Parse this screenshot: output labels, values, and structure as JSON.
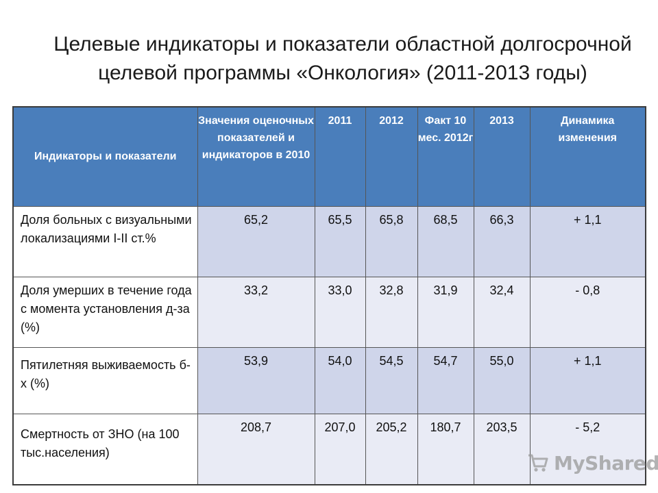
{
  "title": {
    "line1": "Целевые индикаторы и показатели областной долгосрочной",
    "line2": "целевой программы  «Онкология» (2011-2013 годы)"
  },
  "table": {
    "headers": [
      "Индикаторы и показатели",
      "Значения оценочных показателей и индикаторов в 2010",
      "2011",
      "2012",
      "Факт 10 мес. 2012г",
      "2013",
      "Динамика изменения"
    ],
    "rows": [
      {
        "label": "Доля больных с визуальными локализациями I-II ст.%",
        "values": [
          "65,2",
          "65,5",
          "65,8",
          "68,5",
          "66,3",
          "+ 1,1"
        ]
      },
      {
        "label": "Доля умерших в течение года с момента установления д-за (%)",
        "values": [
          "33,2",
          "33,0",
          "32,8",
          "31,9",
          "32,4",
          "- 0,8"
        ]
      },
      {
        "label": "Пятилетняя выживаемость б-х (%)",
        "values": [
          "53,9",
          "54,0",
          "54,5",
          "54,7",
          "55,0",
          "+ 1,1"
        ]
      },
      {
        "label": "Смертность от ЗНО (на 100 тыс.населения)",
        "values": [
          "208,7",
          "207,0",
          "205,2",
          "180,7",
          "203,5",
          "- 5,2"
        ]
      }
    ]
  },
  "watermark": {
    "text": "MyShared",
    "icon": "shopping-cart-icon"
  },
  "colors": {
    "header_bg": "#4a7ebb",
    "row_band_dark": "#cfd5ea",
    "row_band_light": "#e9ebf5"
  }
}
